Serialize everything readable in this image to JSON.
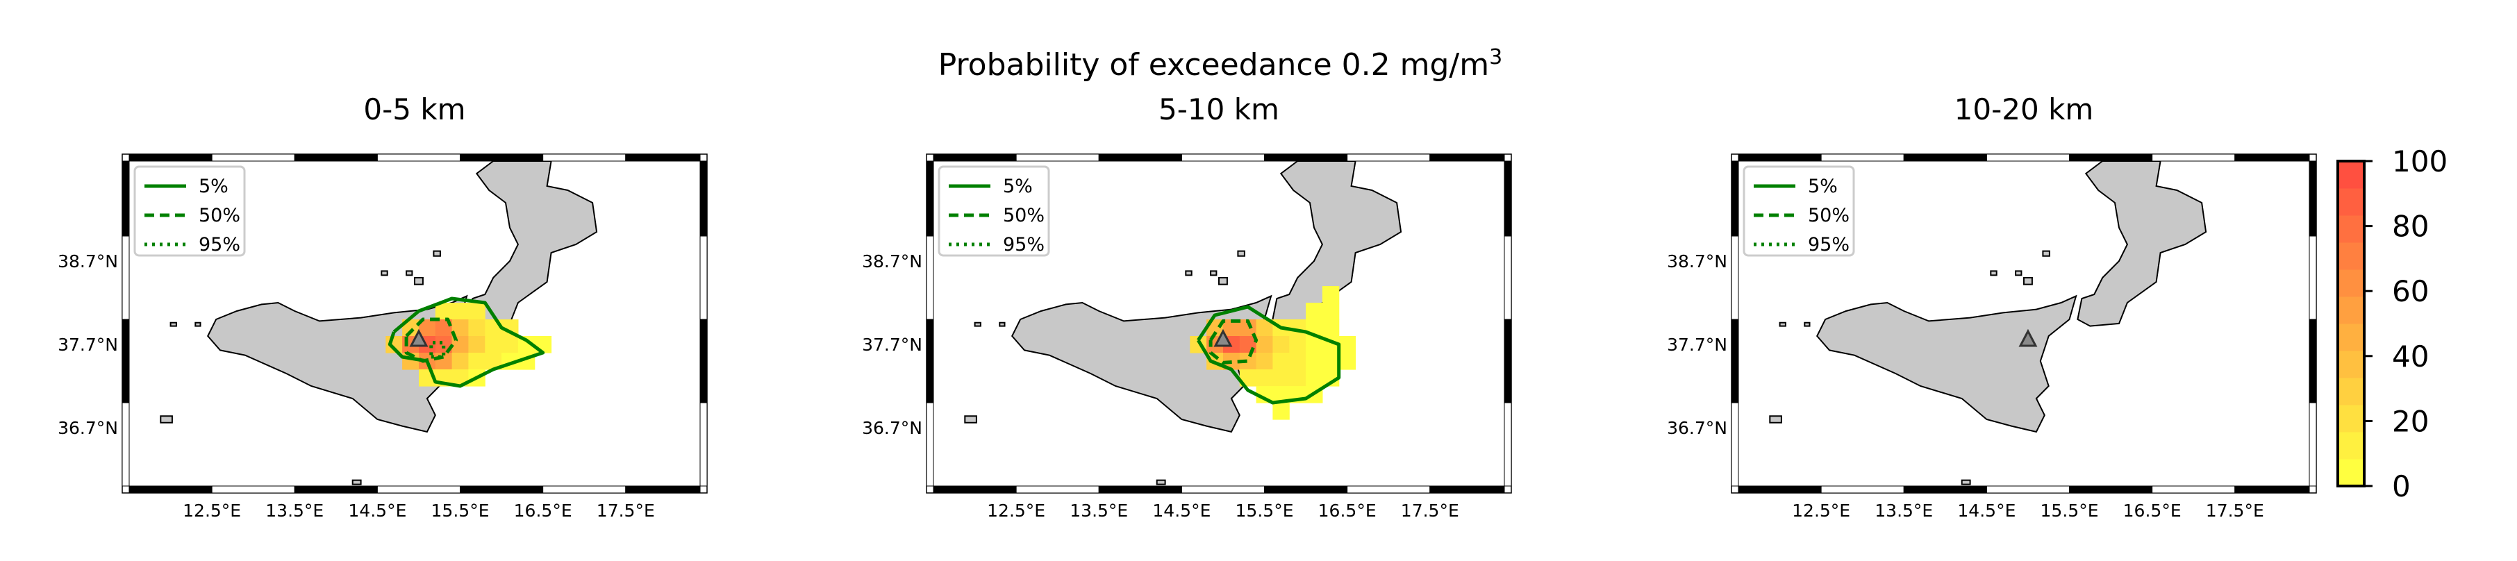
{
  "figure": {
    "suptitle_prefix": "Probability of exceedance 0.2 mg/m",
    "suptitle_sup": "3"
  },
  "colorbar": {
    "ticks": [
      "100",
      "80",
      "60",
      "40",
      "20",
      "0"
    ],
    "colors_low_to_high": [
      "#ffff40",
      "#fff040",
      "#ffe040",
      "#ffd040",
      "#ffc040",
      "#ffb040",
      "#ffa040",
      "#ff9040",
      "#ff8040",
      "#ff7040",
      "#ff6040",
      "#ff5040"
    ]
  },
  "legend": {
    "items": [
      {
        "label": "5%",
        "style": "solid"
      },
      {
        "label": "50%",
        "style": "dashed"
      },
      {
        "label": "95%",
        "style": "dotted"
      }
    ],
    "color": "#008000"
  },
  "axis": {
    "lat_labels": [
      "38.7°N",
      "37.7°N",
      "36.7°N"
    ],
    "lon_labels": [
      "12.5°E",
      "13.5°E",
      "14.5°E",
      "15.5°E",
      "16.5°E",
      "17.5°E"
    ]
  },
  "chart_data": [
    {
      "type": "heatmap",
      "title": "0-5 km",
      "xlabel": "",
      "ylabel": "",
      "xlim": [
        11.5,
        18.4
      ],
      "ylim": [
        36.0,
        39.9
      ],
      "colorbar_range": [
        0,
        100
      ],
      "volcano": {
        "lon": 15.0,
        "lat": 37.75
      },
      "cells": [
        [
          15.3,
          38.1,
          15
        ],
        [
          15.5,
          38.1,
          15
        ],
        [
          15.7,
          38.1,
          10
        ],
        [
          14.9,
          37.9,
          30
        ],
        [
          15.1,
          37.9,
          65
        ],
        [
          15.3,
          37.9,
          70
        ],
        [
          15.5,
          37.9,
          40
        ],
        [
          15.7,
          37.9,
          20
        ],
        [
          15.9,
          37.9,
          15
        ],
        [
          16.1,
          37.9,
          10
        ],
        [
          14.7,
          37.7,
          25
        ],
        [
          14.9,
          37.7,
          70
        ],
        [
          15.1,
          37.7,
          90
        ],
        [
          15.3,
          37.7,
          75
        ],
        [
          15.5,
          37.7,
          45
        ],
        [
          15.7,
          37.7,
          25
        ],
        [
          15.9,
          37.7,
          15
        ],
        [
          16.1,
          37.7,
          10
        ],
        [
          16.3,
          37.7,
          5
        ],
        [
          16.5,
          37.7,
          5
        ],
        [
          14.9,
          37.5,
          40
        ],
        [
          15.1,
          37.5,
          60
        ],
        [
          15.3,
          37.5,
          50
        ],
        [
          15.5,
          37.5,
          30
        ],
        [
          15.7,
          37.5,
          15
        ],
        [
          15.9,
          37.5,
          10
        ],
        [
          16.1,
          37.5,
          5
        ],
        [
          16.3,
          37.5,
          5
        ],
        [
          15.1,
          37.3,
          15
        ],
        [
          15.3,
          37.3,
          15
        ],
        [
          15.5,
          37.3,
          10
        ],
        [
          15.7,
          37.3,
          5
        ]
      ],
      "contours": {
        "5%": [
          [
            14.7,
            37.85
          ],
          [
            15.0,
            38.1
          ],
          [
            15.4,
            38.25
          ],
          [
            15.8,
            38.2
          ],
          [
            16.0,
            37.9
          ],
          [
            16.3,
            37.75
          ],
          [
            16.5,
            37.6
          ],
          [
            16.2,
            37.5
          ],
          [
            15.9,
            37.4
          ],
          [
            15.5,
            37.2
          ],
          [
            15.2,
            37.25
          ],
          [
            15.1,
            37.5
          ],
          [
            14.8,
            37.55
          ],
          [
            14.65,
            37.7
          ],
          [
            14.7,
            37.85
          ]
        ],
        "50%": [
          [
            14.85,
            37.8
          ],
          [
            15.05,
            38.0
          ],
          [
            15.35,
            38.0
          ],
          [
            15.45,
            37.75
          ],
          [
            15.3,
            37.55
          ],
          [
            15.05,
            37.5
          ],
          [
            14.85,
            37.6
          ],
          [
            14.85,
            37.8
          ]
        ],
        "95%": [
          [
            15.15,
            37.55
          ],
          [
            15.3,
            37.55
          ],
          [
            15.3,
            37.72
          ],
          [
            15.15,
            37.72
          ],
          [
            15.15,
            37.55
          ]
        ]
      }
    },
    {
      "type": "heatmap",
      "title": "5-10 km",
      "xlabel": "",
      "ylabel": "",
      "xlim": [
        11.5,
        18.4
      ],
      "ylim": [
        36.0,
        39.9
      ],
      "colorbar_range": [
        0,
        100
      ],
      "volcano": {
        "lon": 15.0,
        "lat": 37.75
      },
      "cells": [
        [
          16.3,
          38.3,
          5
        ],
        [
          16.1,
          38.1,
          5
        ],
        [
          16.3,
          38.1,
          5
        ],
        [
          14.9,
          37.9,
          35
        ],
        [
          15.1,
          37.9,
          55
        ],
        [
          15.3,
          37.9,
          55
        ],
        [
          15.5,
          37.9,
          25
        ],
        [
          15.7,
          37.9,
          10
        ],
        [
          15.9,
          37.9,
          10
        ],
        [
          16.1,
          37.9,
          5
        ],
        [
          16.3,
          37.9,
          5
        ],
        [
          14.7,
          37.7,
          20
        ],
        [
          14.9,
          37.7,
          65
        ],
        [
          15.1,
          37.7,
          85
        ],
        [
          15.3,
          37.7,
          80
        ],
        [
          15.5,
          37.7,
          40
        ],
        [
          15.7,
          37.7,
          20
        ],
        [
          15.9,
          37.7,
          10
        ],
        [
          16.1,
          37.7,
          5
        ],
        [
          16.3,
          37.7,
          5
        ],
        [
          16.5,
          37.7,
          5
        ],
        [
          14.9,
          37.5,
          30
        ],
        [
          15.1,
          37.5,
          45
        ],
        [
          15.3,
          37.5,
          35
        ],
        [
          15.5,
          37.5,
          25
        ],
        [
          15.7,
          37.5,
          15
        ],
        [
          15.9,
          37.5,
          10
        ],
        [
          16.1,
          37.5,
          5
        ],
        [
          16.3,
          37.5,
          5
        ],
        [
          16.5,
          37.5,
          5
        ],
        [
          15.3,
          37.3,
          15
        ],
        [
          15.5,
          37.3,
          15
        ],
        [
          15.7,
          37.3,
          10
        ],
        [
          15.9,
          37.3,
          10
        ],
        [
          16.1,
          37.3,
          5
        ],
        [
          16.3,
          37.3,
          5
        ],
        [
          15.5,
          37.1,
          5
        ],
        [
          15.7,
          37.1,
          5
        ],
        [
          15.9,
          37.1,
          5
        ],
        [
          16.1,
          37.1,
          5
        ],
        [
          15.7,
          36.9,
          5
        ]
      ],
      "contours": {
        "5%": [
          [
            14.7,
            37.75
          ],
          [
            14.9,
            38.05
          ],
          [
            15.3,
            38.15
          ],
          [
            15.7,
            37.9
          ],
          [
            16.0,
            37.85
          ],
          [
            16.4,
            37.7
          ],
          [
            16.4,
            37.3
          ],
          [
            16.0,
            37.05
          ],
          [
            15.6,
            37.0
          ],
          [
            15.3,
            37.15
          ],
          [
            15.1,
            37.4
          ],
          [
            14.85,
            37.5
          ],
          [
            14.7,
            37.75
          ]
        ],
        "50%": [
          [
            14.85,
            37.75
          ],
          [
            15.0,
            37.98
          ],
          [
            15.3,
            37.98
          ],
          [
            15.4,
            37.75
          ],
          [
            15.3,
            37.5
          ],
          [
            15.0,
            37.48
          ],
          [
            14.85,
            37.6
          ],
          [
            14.85,
            37.75
          ]
        ],
        "95%": []
      }
    },
    {
      "type": "heatmap",
      "title": "10-20 km",
      "xlabel": "",
      "ylabel": "",
      "xlim": [
        11.5,
        18.4
      ],
      "ylim": [
        36.0,
        39.9
      ],
      "colorbar_range": [
        0,
        100
      ],
      "volcano": {
        "lon": 15.0,
        "lat": 37.75
      },
      "cells": [],
      "contours": {
        "5%": [],
        "50%": [],
        "95%": []
      }
    }
  ]
}
